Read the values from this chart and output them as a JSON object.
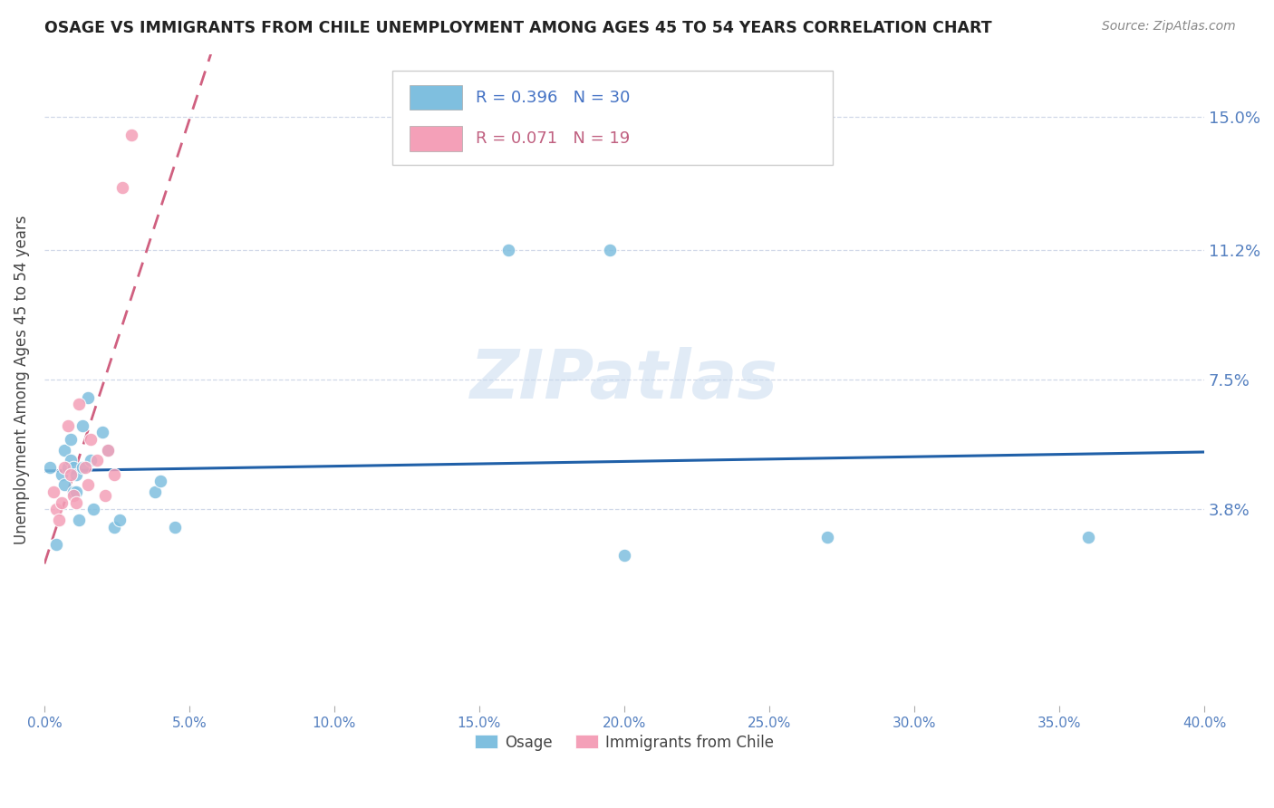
{
  "title": "OSAGE VS IMMIGRANTS FROM CHILE UNEMPLOYMENT AMONG AGES 45 TO 54 YEARS CORRELATION CHART",
  "source": "Source: ZipAtlas.com",
  "ylabel": "Unemployment Among Ages 45 to 54 years",
  "ytick_labels": [
    "15.0%",
    "11.2%",
    "7.5%",
    "3.8%"
  ],
  "ytick_values": [
    0.15,
    0.112,
    0.075,
    0.038
  ],
  "xmin": 0.0,
  "xmax": 0.4,
  "ymin": -0.018,
  "ymax": 0.168,
  "legend_label1": "Osage",
  "legend_label2": "Immigrants from Chile",
  "color_blue": "#7fbfdf",
  "color_pink": "#f4a0b8",
  "trendline_blue": "#2060a8",
  "trendline_pink": "#d06080",
  "watermark": "ZIPatlas",
  "blue_points_x": [
    0.002,
    0.004,
    0.006,
    0.007,
    0.007,
    0.008,
    0.009,
    0.009,
    0.01,
    0.01,
    0.011,
    0.011,
    0.012,
    0.013,
    0.013,
    0.015,
    0.016,
    0.017,
    0.02,
    0.022,
    0.024,
    0.026,
    0.038,
    0.04,
    0.045,
    0.16,
    0.195,
    0.2,
    0.27,
    0.36
  ],
  "blue_points_y": [
    0.05,
    0.028,
    0.048,
    0.045,
    0.055,
    0.05,
    0.052,
    0.058,
    0.05,
    0.043,
    0.043,
    0.048,
    0.035,
    0.05,
    0.062,
    0.07,
    0.052,
    0.038,
    0.06,
    0.055,
    0.033,
    0.035,
    0.043,
    0.046,
    0.033,
    0.112,
    0.112,
    0.025,
    0.03,
    0.03
  ],
  "pink_points_x": [
    0.003,
    0.004,
    0.005,
    0.006,
    0.007,
    0.008,
    0.009,
    0.01,
    0.011,
    0.012,
    0.014,
    0.015,
    0.016,
    0.018,
    0.021,
    0.022,
    0.024,
    0.027,
    0.03
  ],
  "pink_points_y": [
    0.043,
    0.038,
    0.035,
    0.04,
    0.05,
    0.062,
    0.048,
    0.042,
    0.04,
    0.068,
    0.05,
    0.045,
    0.058,
    0.052,
    0.042,
    0.055,
    0.048,
    0.13,
    0.145
  ]
}
